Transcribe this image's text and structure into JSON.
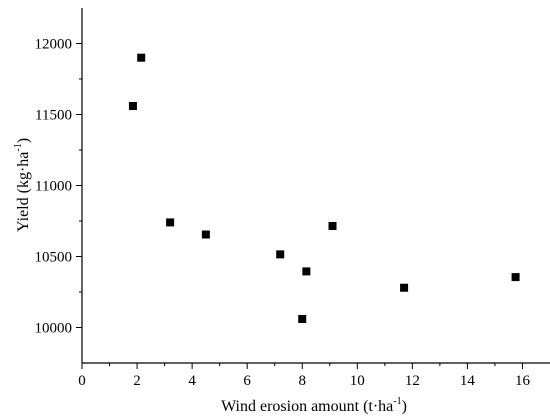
{
  "chart_data": {
    "type": "scatter",
    "title": "",
    "xlabel": "Wind erosion amount (t·ha",
    "xlabel_sup": "-1",
    "xlabel_end": ")",
    "ylabel": "Yield (kg·ha",
    "ylabel_sup": "-1",
    "ylabel_end": ")",
    "xlim": [
      0,
      17
    ],
    "ylim": [
      9750,
      12250
    ],
    "xticks": [
      0,
      2,
      4,
      6,
      8,
      10,
      12,
      14,
      16
    ],
    "yticks": [
      10000,
      10500,
      11000,
      11500,
      12000
    ],
    "grid": false,
    "marker": "square",
    "marker_color": "#000000",
    "points": [
      {
        "x": 1.85,
        "y": 11560
      },
      {
        "x": 2.15,
        "y": 11900
      },
      {
        "x": 3.2,
        "y": 10740
      },
      {
        "x": 4.5,
        "y": 10655
      },
      {
        "x": 7.2,
        "y": 10515
      },
      {
        "x": 8.0,
        "y": 10060
      },
      {
        "x": 8.15,
        "y": 10395
      },
      {
        "x": 9.1,
        "y": 10715
      },
      {
        "x": 11.7,
        "y": 10280
      },
      {
        "x": 15.75,
        "y": 10355
      }
    ]
  }
}
